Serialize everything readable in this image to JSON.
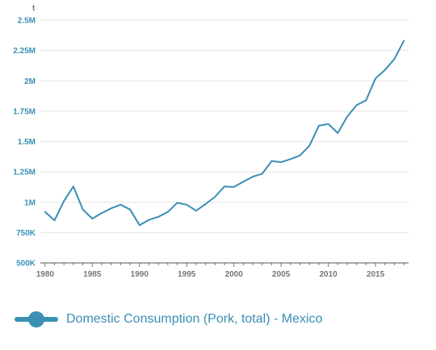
{
  "chart_data": {
    "type": "line",
    "unit_label": "t",
    "x": [
      1980,
      1981,
      1982,
      1983,
      1984,
      1985,
      1986,
      1987,
      1988,
      1989,
      1990,
      1991,
      1992,
      1993,
      1994,
      1995,
      1996,
      1997,
      1998,
      1999,
      2000,
      2001,
      2002,
      2003,
      2004,
      2005,
      2006,
      2007,
      2008,
      2009,
      2010,
      2011,
      2012,
      2013,
      2014,
      2015,
      2016,
      2017,
      2018
    ],
    "series": [
      {
        "name": "Domestic Consumption (Pork, total) - Mexico",
        "color": "#3a8fb5",
        "values": [
          920000,
          850000,
          1010000,
          1130000,
          940000,
          865000,
          910000,
          950000,
          980000,
          940000,
          810000,
          855000,
          880000,
          920000,
          995000,
          980000,
          930000,
          985000,
          1045000,
          1130000,
          1125000,
          1170000,
          1210000,
          1235000,
          1340000,
          1330000,
          1355000,
          1385000,
          1465000,
          1630000,
          1645000,
          1570000,
          1705000,
          1800000,
          1840000,
          2020000,
          2090000,
          2180000,
          2330000
        ]
      }
    ],
    "xlim": [
      1979.5,
      2018.5
    ],
    "ylim": [
      500000,
      2500000
    ],
    "x_ticks": [
      1980,
      1985,
      1990,
      1995,
      2000,
      2005,
      2010,
      2015
    ],
    "y_ticks": [
      {
        "value": 500000,
        "label": "500K"
      },
      {
        "value": 750000,
        "label": "750K"
      },
      {
        "value": 1000000,
        "label": "1M"
      },
      {
        "value": 1250000,
        "label": "1.25M"
      },
      {
        "value": 1500000,
        "label": "1.5M"
      },
      {
        "value": 1750000,
        "label": "1.75M"
      },
      {
        "value": 2000000,
        "label": "2M"
      },
      {
        "value": 2250000,
        "label": "2.25M"
      },
      {
        "value": 2500000,
        "label": "2.5M"
      }
    ],
    "grid": "horizontal",
    "legend_position": "bottom-left"
  }
}
